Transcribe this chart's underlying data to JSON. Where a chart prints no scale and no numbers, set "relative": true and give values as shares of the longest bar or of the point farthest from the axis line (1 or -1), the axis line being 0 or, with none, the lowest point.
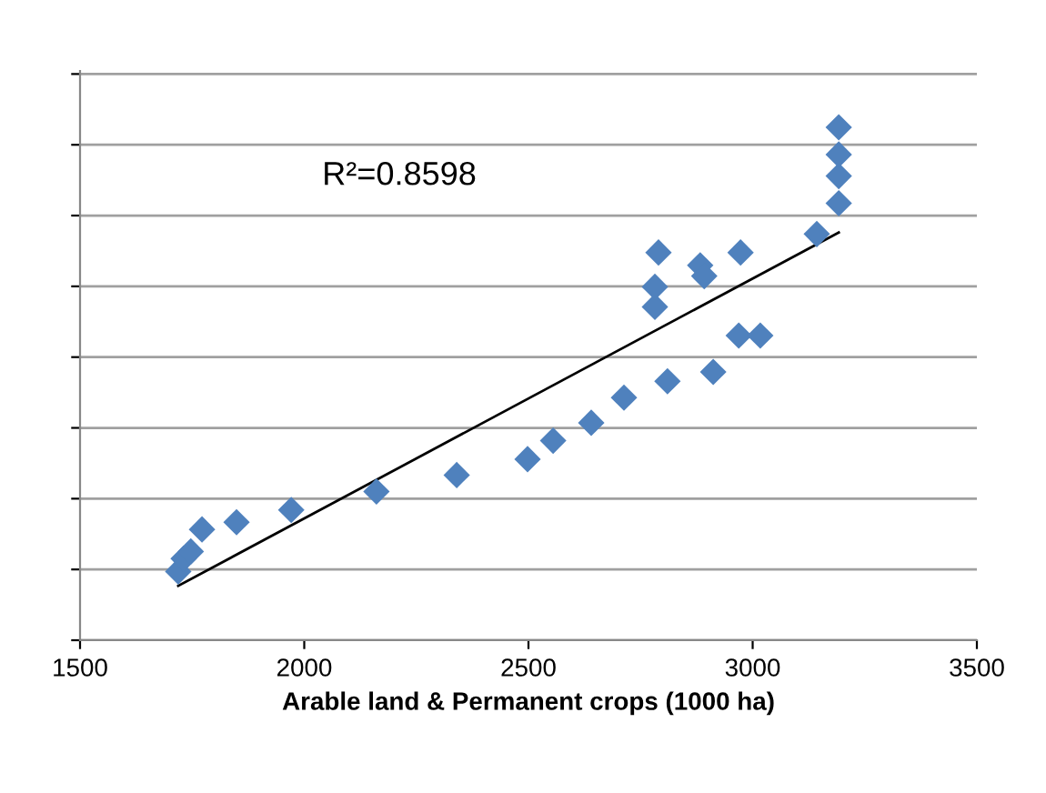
{
  "chart_data": {
    "type": "scatter",
    "xlabel": "Arable land & Permanent crops (1000 ha)",
    "relative": true,
    "xlim": [
      1500,
      3500
    ],
    "xticks": [
      1500,
      2000,
      2500,
      3000,
      3500
    ],
    "grid": "y",
    "annotations": [
      "R²=0.8598"
    ],
    "series": [
      {
        "marker": "diamond",
        "color": "#4f81bd",
        "x": [
          1719,
          1731,
          1747,
          1772,
          1849,
          1971,
          2161,
          2340,
          2498,
          2555,
          2640,
          2713,
          2810,
          2912,
          2969,
          3017,
          2782,
          2782,
          2790,
          2883,
          2892,
          2973,
          3143,
          3192,
          3192,
          3192,
          3192
        ],
        "values": [
          0.134,
          0.159,
          0.173,
          0.216,
          0.23,
          0.254,
          0.29,
          0.322,
          0.353,
          0.389,
          0.424,
          0.473,
          0.505,
          0.523,
          0.594,
          0.594,
          0.65,
          0.689,
          0.756,
          0.731,
          0.71,
          0.756,
          0.792,
          0.852,
          0.905,
          0.947,
          1
        ]
      },
      {
        "type": "line",
        "color": "#000000",
        "x": [
          1719,
          3192
        ],
        "values": [
          0.106,
          0.795
        ]
      }
    ]
  }
}
